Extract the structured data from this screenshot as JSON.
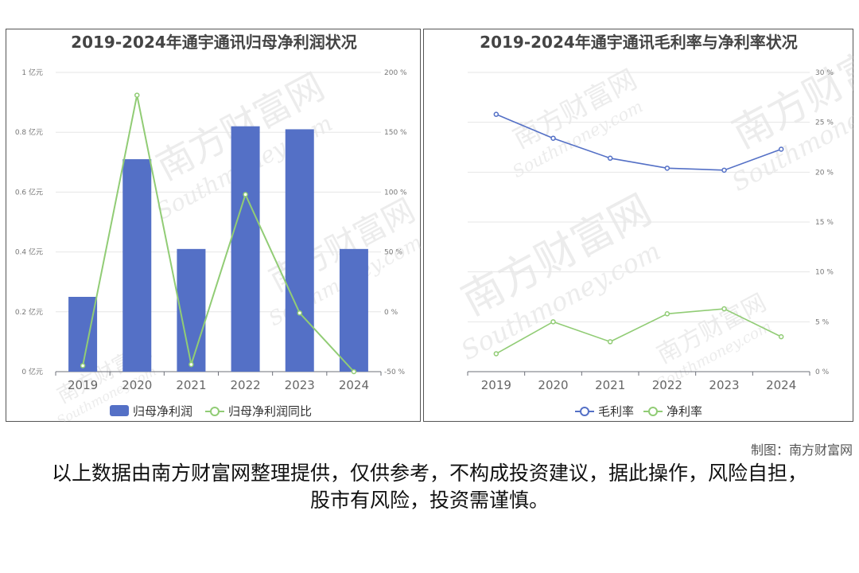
{
  "credit": "制图：南方财富网",
  "disclaimer": "以上数据由南方财富网整理提供，仅供参考，不构成投资建议，据此操作，风险自担，股市有风险，投资需谨慎。",
  "watermark": {
    "cn": "南方财富网",
    "en": "Southmoney.com"
  },
  "chart_data": [
    {
      "type": "bar",
      "title": "2019-2024年通宇通讯归母净利润状况",
      "categories": [
        "2019",
        "2020",
        "2021",
        "2022",
        "2023",
        "2024"
      ],
      "series": [
        {
          "name": "归母净利润",
          "type": "bar",
          "axis": "left",
          "values": [
            0.25,
            0.71,
            0.41,
            0.82,
            0.81,
            0.41
          ],
          "color": "#5470c6"
        },
        {
          "name": "归母净利润同比",
          "type": "line",
          "axis": "right",
          "values": [
            -45,
            181,
            -44,
            98,
            -1,
            -50
          ],
          "color": "#91cc75"
        }
      ],
      "y_left": {
        "min": 0,
        "max": 1,
        "ticks": [
          "0 亿元",
          "0.2 亿元",
          "0.4 亿元",
          "0.6 亿元",
          "0.8 亿元",
          "1 亿元"
        ]
      },
      "y_right": {
        "min": -50,
        "max": 200,
        "ticks": [
          "-50 %",
          "0 %",
          "50 %",
          "100 %",
          "150 %",
          "200 %"
        ]
      },
      "grid": true,
      "legend": "bottom"
    },
    {
      "type": "line",
      "title": "2019-2024年通宇通讯毛利率与净利率状况",
      "categories": [
        "2019",
        "2020",
        "2021",
        "2022",
        "2023",
        "2024"
      ],
      "series": [
        {
          "name": "毛利率",
          "values": [
            25.8,
            23.4,
            21.4,
            20.4,
            20.2,
            22.3
          ],
          "color": "#5470c6"
        },
        {
          "name": "净利率",
          "values": [
            1.8,
            5.0,
            3.0,
            5.8,
            6.3,
            3.5
          ],
          "color": "#91cc75"
        }
      ],
      "y_right": {
        "min": 0,
        "max": 30,
        "ticks": [
          "0 %",
          "5 %",
          "10 %",
          "15 %",
          "20 %",
          "25 %",
          "30 %"
        ]
      },
      "grid": true,
      "legend": "bottom"
    }
  ]
}
